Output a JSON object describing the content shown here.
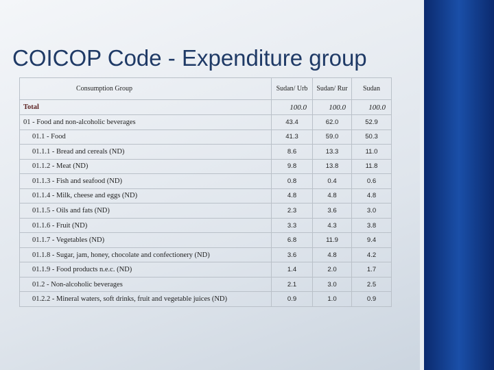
{
  "title": "COICOP Code - Expenditure group",
  "table": {
    "header": [
      "Consumption Group",
      "Sudan/ Urb",
      "Sudan/ Rur",
      "Sudan"
    ],
    "rows": [
      [
        "Total",
        "100.0",
        "100.0",
        "100.0"
      ],
      [
        "01 - Food and non-alcoholic beverages",
        "43.4",
        "62.0",
        "52.9"
      ],
      [
        "01.1 - Food",
        "41.3",
        "59.0",
        "50.3"
      ],
      [
        "01.1.1 - Bread and cereals (ND)",
        "8.6",
        "13.3",
        "11.0"
      ],
      [
        "01.1.2 - Meat (ND)",
        "9.8",
        "13.8",
        "11.8"
      ],
      [
        "01.1.3 - Fish and seafood (ND)",
        "0.8",
        "0.4",
        "0.6"
      ],
      [
        "01.1.4 - Milk, cheese and eggs (ND)",
        "4.8",
        "4.8",
        "4.8"
      ],
      [
        "01.1.5 - Oils and fats (ND)",
        "2.3",
        "3.6",
        "3.0"
      ],
      [
        "01.1.6 - Fruit (ND)",
        "3.3",
        "4.3",
        "3.8"
      ],
      [
        "01.1.7 - Vegetables (ND)",
        "6.8",
        "11.9",
        "9.4"
      ],
      [
        "01.1.8 - Sugar, jam, honey, chocolate and confectionery (ND)",
        "3.6",
        "4.8",
        "4.2"
      ],
      [
        "01.1.9 - Food products n.e.c. (ND)",
        "1.4",
        "2.0",
        "1.7"
      ],
      [
        "01.2 - Non-alcoholic beverages",
        "2.1",
        "3.0",
        "2.5"
      ],
      [
        "01.2.2 - Mineral waters, soft drinks, fruit and vegetable juices (ND)",
        "0.9",
        "1.0",
        "0.9"
      ]
    ]
  }
}
